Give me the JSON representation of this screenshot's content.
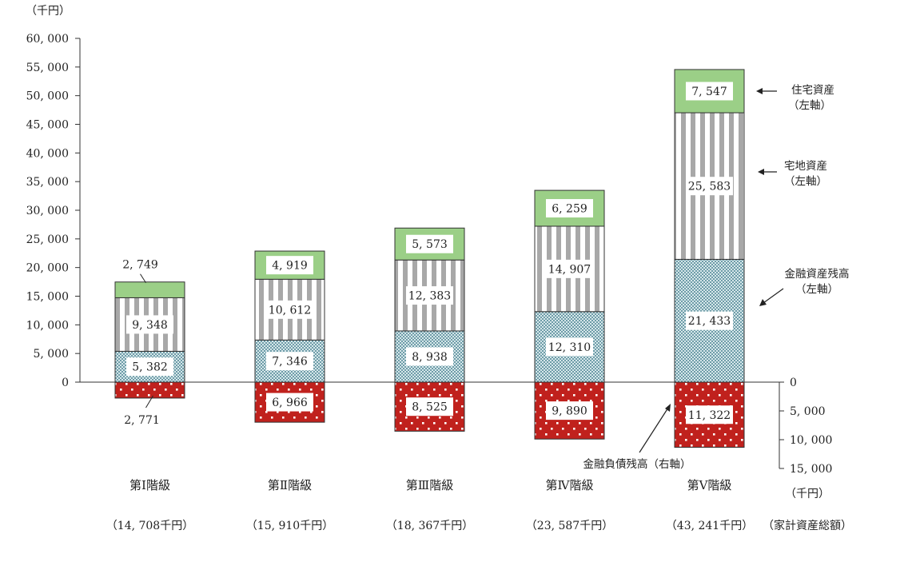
{
  "chart_data": {
    "type": "bar",
    "stacked": true,
    "left_axis": {
      "unit_label": "（千円）",
      "ylim": [
        0,
        60000
      ],
      "ticks": [
        "0",
        "5, 000",
        "10, 000",
        "15, 000",
        "20, 000",
        "25, 000",
        "30, 000",
        "35, 000",
        "40, 000",
        "45, 000",
        "50, 000",
        "55, 000",
        "60, 000"
      ]
    },
    "right_axis": {
      "unit_label": "（千円）",
      "ylim": [
        0,
        15000
      ],
      "inverted": true,
      "ticks": [
        "0",
        "5, 000",
        "10, 000",
        "15, 000"
      ]
    },
    "categories": [
      "第Ⅰ階級",
      "第Ⅱ階級",
      "第Ⅲ階級",
      "第Ⅳ階級",
      "第Ⅴ階級"
    ],
    "totals": [
      "（14, 708千円）",
      "（15, 910千円）",
      "（18, 367千円）",
      "（23, 587千円）",
      "（43, 241千円）"
    ],
    "totals_label": "（家計資産総額）",
    "series": [
      {
        "name_line1": "金融資産残高",
        "name_line2": "（左軸）",
        "color": "#8fb8c0",
        "pattern": "dots-fine",
        "values": [
          5382,
          7346,
          8938,
          12310,
          21433
        ],
        "labels": [
          "5, 382",
          "7, 346",
          "8, 938",
          "12, 310",
          "21, 433"
        ]
      },
      {
        "name_line1": "宅地資産",
        "name_line2": "（左軸）",
        "color": "#a8a8a8",
        "pattern": "vertical-stripes",
        "values": [
          9348,
          10612,
          12383,
          14907,
          25583
        ],
        "labels": [
          "9, 348",
          "10, 612",
          "12, 383",
          "14, 907",
          "25, 583"
        ]
      },
      {
        "name_line1": "住宅資産",
        "name_line2": "（左軸）",
        "color": "#9bcf87",
        "pattern": "solid",
        "values": [
          2749,
          4919,
          5573,
          6259,
          7547
        ],
        "labels": [
          "2, 749",
          "4, 919",
          "5, 573",
          "6, 259",
          "7, 547"
        ]
      },
      {
        "name_line1": "金融負債残高（右軸）",
        "name_line2": "",
        "color": "#c0211d",
        "pattern": "white-dots",
        "values": [
          2771,
          6966,
          8525,
          9890,
          11322
        ],
        "labels": [
          "2, 771",
          "6, 966",
          "8, 525",
          "9, 890",
          "11, 322"
        ]
      }
    ]
  }
}
